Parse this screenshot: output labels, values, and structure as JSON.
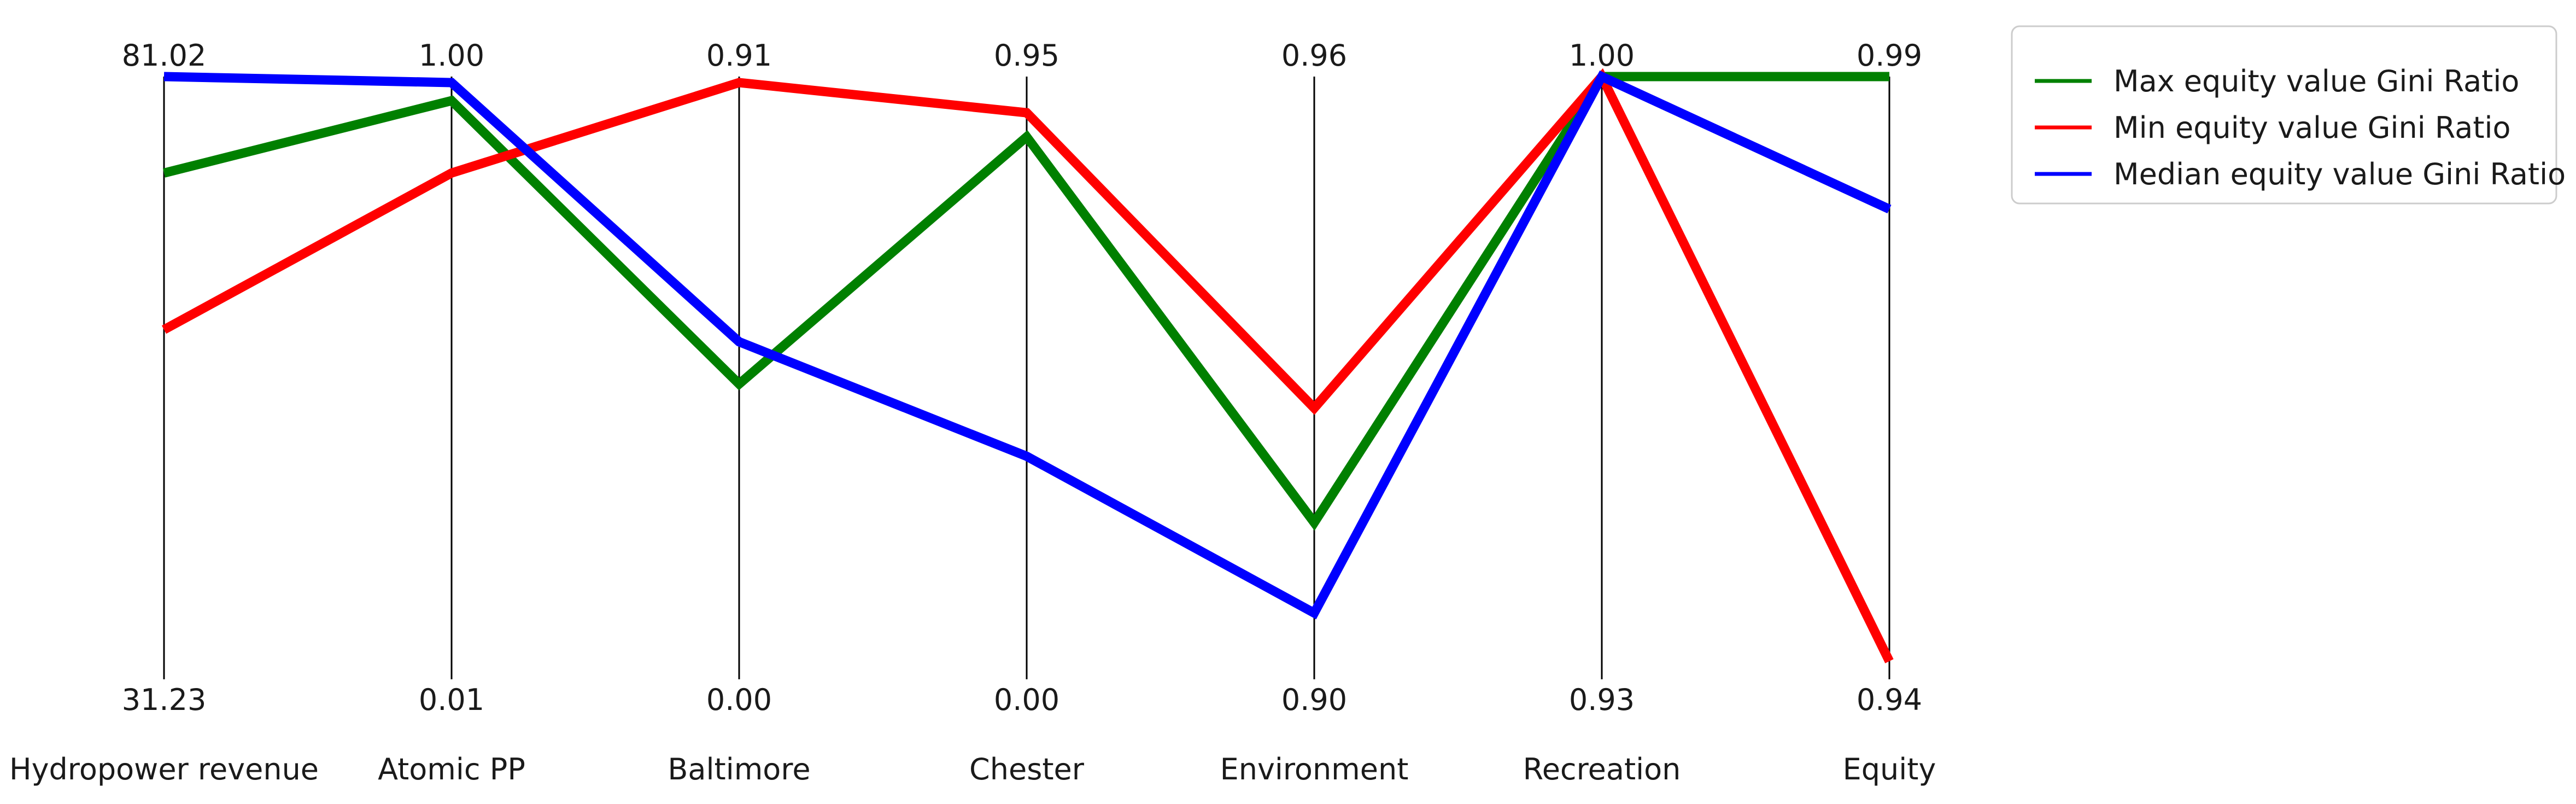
{
  "chart_data": {
    "type": "line",
    "subtype": "parallel-coordinates",
    "title": "",
    "axes": [
      {
        "name": "Hydropower revenue",
        "top": "81.02",
        "bottom": "31.23"
      },
      {
        "name": "Atomic PP",
        "top": "1.00",
        "bottom": "0.01"
      },
      {
        "name": "Baltimore",
        "top": "0.91",
        "bottom": "0.00"
      },
      {
        "name": "Chester",
        "top": "0.95",
        "bottom": "0.00"
      },
      {
        "name": "Environment",
        "top": "0.96",
        "bottom": "0.90"
      },
      {
        "name": "Recreation",
        "top": "1.00",
        "bottom": "0.93"
      },
      {
        "name": "Equity",
        "top": "0.99",
        "bottom": "0.94"
      }
    ],
    "series": [
      {
        "name": "Max equity value Gini Ratio",
        "color": "#008000",
        "values": [
          0.84,
          0.96,
          0.49,
          0.9,
          0.26,
          1.0,
          1.0
        ]
      },
      {
        "name": "Min equity value Gini Ratio",
        "color": "#ff0000",
        "values": [
          0.58,
          0.84,
          0.99,
          0.94,
          0.45,
          1.0,
          0.03
        ]
      },
      {
        "name": "Median equity value Gini Ratio",
        "color": "#0000ff",
        "values": [
          1.0,
          0.99,
          0.56,
          0.37,
          0.11,
          1.0,
          0.78
        ]
      }
    ],
    "value_scale": "each axis normalized from its bottom label (0) to its top label (1)",
    "legend": {
      "position": "top-right"
    },
    "grid": false
  }
}
